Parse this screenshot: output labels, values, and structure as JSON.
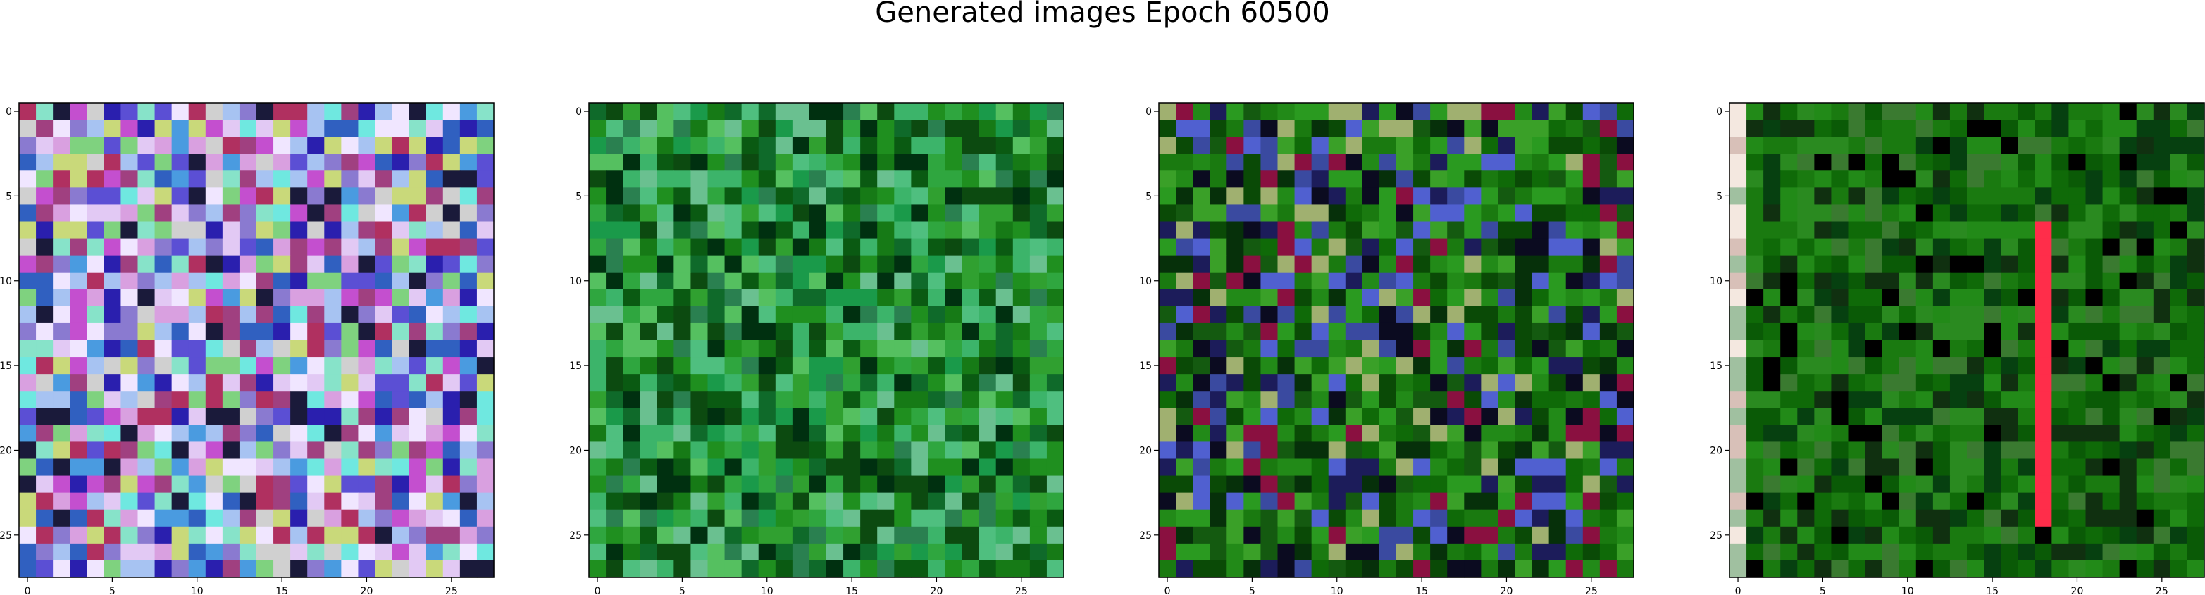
{
  "figure": {
    "title": "Generated images Epoch 60500"
  },
  "chart_data": [
    {
      "type": "heatmap",
      "grid_size": [
        28,
        28
      ],
      "xlim": [
        -0.5,
        27.5
      ],
      "ylim": [
        27.5,
        -0.5
      ],
      "xticks": [
        0,
        5,
        10,
        15,
        20,
        25
      ],
      "yticks": [
        0,
        5,
        10,
        15,
        20,
        25
      ],
      "xtick_labels": [
        "0",
        "5",
        "10",
        "15",
        "20",
        "25"
      ],
      "ytick_labels": [
        "0",
        "5",
        "10",
        "15",
        "20",
        "25"
      ],
      "palette": [
        "#d9a0e0",
        "#a7c3f2",
        "#e2c9f4",
        "#87e3c9",
        "#5b4fd4",
        "#2a1fae",
        "#c44fcf",
        "#8a7ad0",
        "#f0e6ff",
        "#4a9be0",
        "#7fd27f",
        "#c9d97a",
        "#b03060",
        "#1a1a3a",
        "#d0d0d0",
        "#6fe8e0",
        "#a04080",
        "#3060c0"
      ],
      "mean_color": "#b7a8df",
      "texture": "high-contrast random pastel and saturated colors"
    },
    {
      "type": "heatmap",
      "grid_size": [
        28,
        28
      ],
      "xlim": [
        -0.5,
        27.5
      ],
      "ylim": [
        27.5,
        -0.5
      ],
      "xticks": [
        0,
        5,
        10,
        15,
        20,
        25
      ],
      "yticks": [
        0,
        5,
        10,
        15,
        20,
        25
      ],
      "xtick_labels": [
        "0",
        "5",
        "10",
        "15",
        "20",
        "25"
      ],
      "ytick_labels": [
        "0",
        "5",
        "10",
        "15",
        "20",
        "25"
      ],
      "palette": [
        "#1f8f1f",
        "#2fa63f",
        "#167a16",
        "#0a5a12",
        "#3cb46a",
        "#4fbf7f",
        "#0c4a10",
        "#55c060",
        "#1a9a4a",
        "#2a8050",
        "#0f6a2a",
        "#6ac090",
        "#003010",
        "#30a030"
      ],
      "mean_color": "#2a9a3a",
      "texture": "green noise with lighter teal band near bottom"
    },
    {
      "type": "heatmap",
      "grid_size": [
        28,
        28
      ],
      "xlim": [
        -0.5,
        27.5
      ],
      "ylim": [
        27.5,
        -0.5
      ],
      "xticks": [
        0,
        5,
        10,
        15,
        20,
        25
      ],
      "yticks": [
        0,
        5,
        10,
        15,
        20,
        25
      ],
      "xtick_labels": [
        "0",
        "5",
        "10",
        "15",
        "20",
        "25"
      ],
      "ytick_labels": [
        "0",
        "5",
        "10",
        "15",
        "20",
        "25"
      ],
      "palette": [
        "#1a7a10",
        "#0f6a08",
        "#228a18",
        "#0a4a06",
        "#2a9a20",
        "#06300a",
        "#3aa028",
        "#145a10",
        "#1c1c5a",
        "#3a4aa0",
        "#8a1040",
        "#a0b070",
        "#5060d0",
        "#0b0b20"
      ],
      "mean_color": "#1c6e14",
      "texture": "dark green noise with scattered navy, purple and crimson cells"
    },
    {
      "type": "heatmap",
      "grid_size": [
        28,
        28
      ],
      "xlim": [
        -0.5,
        27.5
      ],
      "ylim": [
        27.5,
        -0.5
      ],
      "xticks": [
        0,
        5,
        10,
        15,
        20,
        25
      ],
      "yticks": [
        0,
        5,
        10,
        15,
        20,
        25
      ],
      "xtick_labels": [
        "0",
        "5",
        "10",
        "15",
        "20",
        "25"
      ],
      "ytick_labels": [
        "0",
        "5",
        "10",
        "15",
        "20",
        "25"
      ],
      "palette": [
        "#0f6a08",
        "#1a7a10",
        "#0a5a06",
        "#228a18",
        "#064010",
        "#2a8a20",
        "#103010",
        "#3a7a30",
        "#000000"
      ],
      "highlight_column": 18,
      "highlight_color": "#ff2d4a",
      "left_edge_colors": [
        "#f4e8e0",
        "#d8c0b8",
        "#a0c0a0"
      ],
      "mean_color": "#1a6a10",
      "texture": "dark green noise with bright red vertical stripe at column 18"
    }
  ]
}
